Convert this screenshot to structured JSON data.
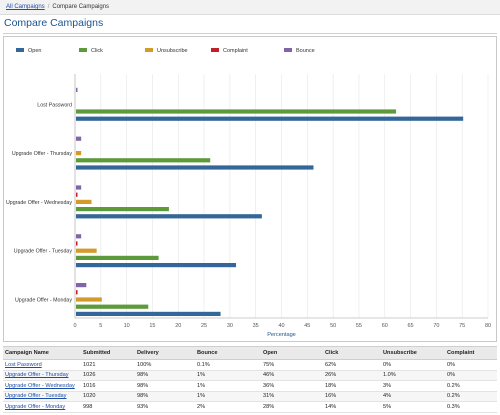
{
  "breadcrumb": {
    "root_label": "All Campaigns",
    "separator": "/",
    "current": "Compare Campaigns"
  },
  "page": {
    "title": "Compare Campaigns"
  },
  "colors": {
    "Open": "#336699",
    "Click": "#5c9a3c",
    "Unsubscribe": "#d49a2a",
    "Complaint": "#c0202a",
    "Bounce": "#8066a8"
  },
  "chart_data": {
    "type": "bar",
    "orientation": "horizontal",
    "categories": [
      "Lost Password",
      "Upgrade Offer - Thursday",
      "Upgrade Offer - Wednesday",
      "Upgrade Offer - Tuesday",
      "Upgrade Offer - Monday"
    ],
    "series": [
      {
        "name": "Open",
        "values": [
          75,
          46,
          36,
          31,
          28
        ]
      },
      {
        "name": "Click",
        "values": [
          62,
          26,
          18,
          16,
          14
        ]
      },
      {
        "name": "Unsubscribe",
        "values": [
          0,
          1,
          3,
          4,
          5
        ]
      },
      {
        "name": "Complaint",
        "values": [
          0,
          0,
          0.2,
          0.2,
          0.3
        ]
      },
      {
        "name": "Bounce",
        "values": [
          0.1,
          1,
          1,
          1,
          2
        ]
      }
    ],
    "xlabel": "Percentage",
    "xlim": [
      0,
      80
    ],
    "xticks": [
      0,
      5,
      10,
      15,
      20,
      25,
      30,
      35,
      40,
      45,
      50,
      55,
      60,
      65,
      70,
      75,
      80
    ],
    "legend_position": "top",
    "grid": true
  },
  "table": {
    "headers": [
      "Campaign Name",
      "Submitted",
      "Delivery",
      "Bounce",
      "Open",
      "Click",
      "Unsubscribe",
      "Complaint"
    ],
    "rows": [
      [
        "Lost Password",
        "1021",
        "100%",
        "0.1%",
        "75%",
        "62%",
        "0%",
        "0%"
      ],
      [
        "Upgrade Offer - Thursday",
        "1026",
        "98%",
        "1%",
        "46%",
        "26%",
        "1.0%",
        "0%"
      ],
      [
        "Upgrade Offer - Wednesday",
        "1016",
        "98%",
        "1%",
        "36%",
        "18%",
        "3%",
        "0.2%"
      ],
      [
        "Upgrade Offer - Tuesday",
        "1020",
        "98%",
        "1%",
        "31%",
        "16%",
        "4%",
        "0.2%"
      ],
      [
        "Upgrade Offer - Monday",
        "998",
        "93%",
        "2%",
        "28%",
        "14%",
        "5%",
        "0.3%"
      ]
    ]
  }
}
